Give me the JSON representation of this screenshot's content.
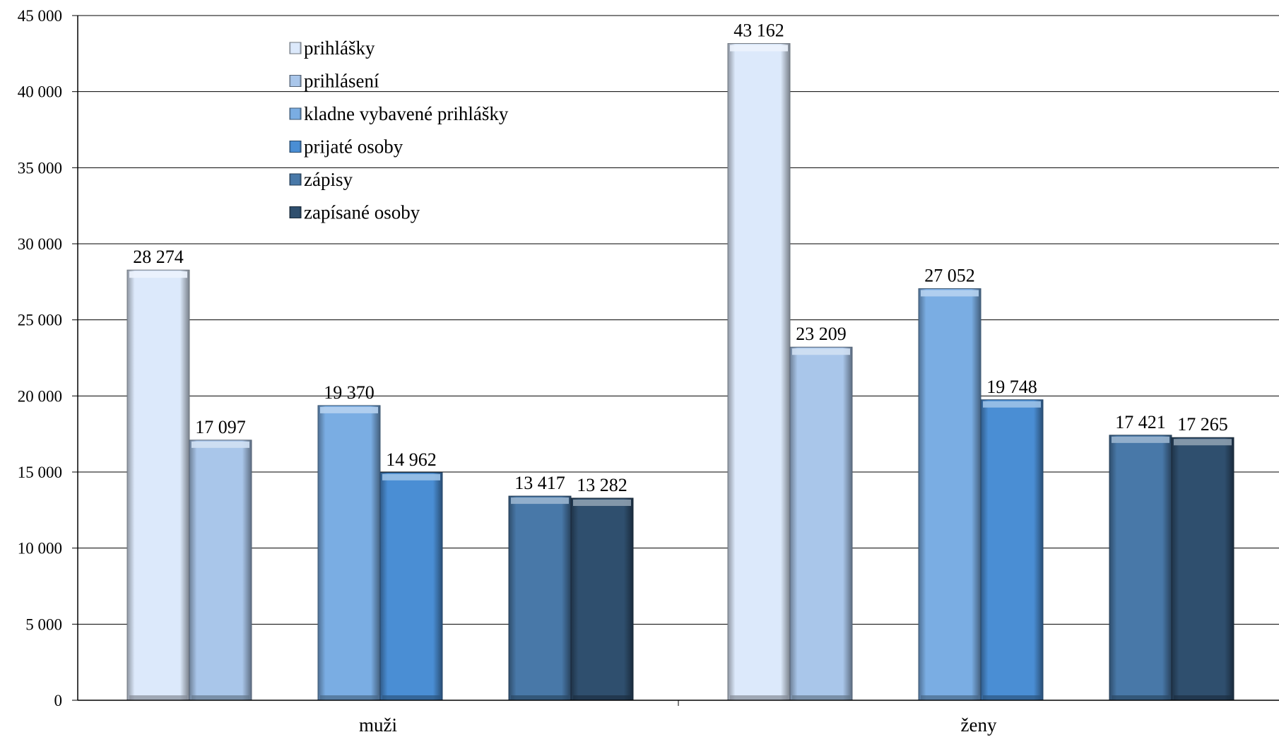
{
  "chart_data": {
    "type": "bar",
    "categories": [
      "muži",
      "ženy"
    ],
    "ylim": [
      0,
      45000
    ],
    "y_ticks": [
      0,
      5000,
      10000,
      15000,
      20000,
      25000,
      30000,
      35000,
      40000,
      45000
    ],
    "y_tick_labels": [
      "0",
      "5 000",
      "10 000",
      "15 000",
      "20 000",
      "25 000",
      "30 000",
      "35 000",
      "40 000",
      "45 000"
    ],
    "grid": true,
    "legend_position": "top-left inside plot",
    "series": [
      {
        "name": "prihlášky",
        "values": [
          28274,
          43162
        ],
        "labels": [
          "28 274",
          "43 162"
        ],
        "color": "#dce9fb"
      },
      {
        "name": "prihlásení",
        "values": [
          17097,
          23209
        ],
        "labels": [
          "17 097",
          "23 209"
        ],
        "color": "#a9c6ea"
      },
      {
        "name": "kladne vybavené prihlášky",
        "values": [
          19370,
          27052
        ],
        "labels": [
          "19 370",
          "27 052"
        ],
        "color": "#7aade3"
      },
      {
        "name": "prijaté osoby",
        "values": [
          14962,
          19748
        ],
        "labels": [
          "14 962",
          "19 748"
        ],
        "color": "#4a8ed4"
      },
      {
        "name": "zápisy",
        "values": [
          13417,
          17421
        ],
        "labels": [
          "13 417",
          "17 421"
        ],
        "color": "#4878a8"
      },
      {
        "name": "zapísané osoby",
        "values": [
          13282,
          17265
        ],
        "labels": [
          "13 282",
          "17 265"
        ],
        "color": "#2f4f6e"
      }
    ]
  }
}
